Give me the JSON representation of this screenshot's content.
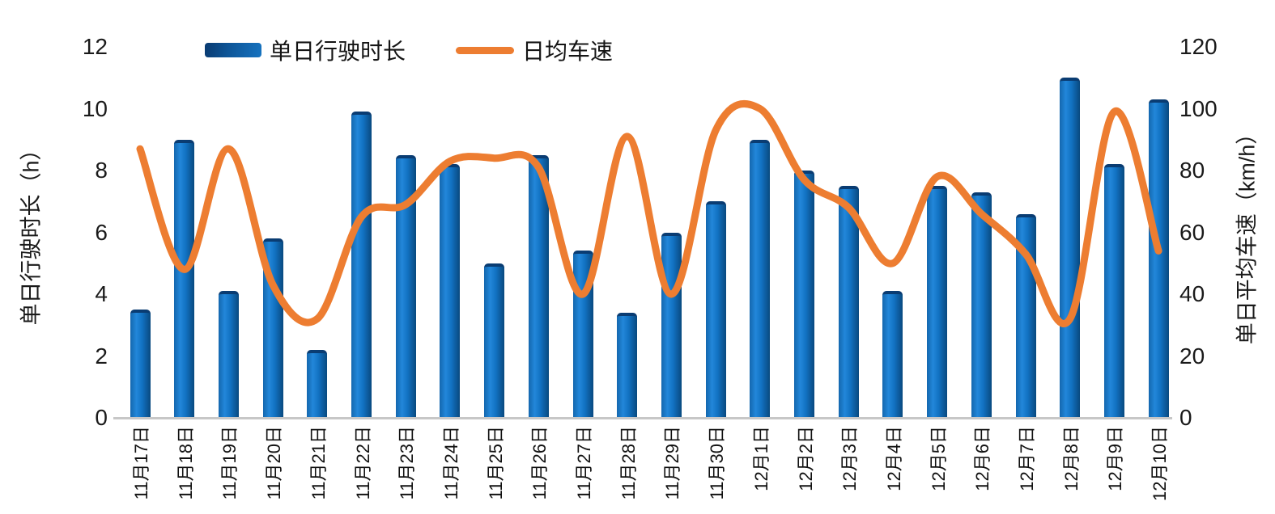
{
  "chart_data": {
    "type": "bar-line-combo",
    "categories": [
      "11月17日",
      "11月18日",
      "11月19日",
      "11月20日",
      "11月21日",
      "11月22日",
      "11月23日",
      "11月24日",
      "11月25日",
      "11月26日",
      "11月27日",
      "11月28日",
      "11月29日",
      "11月30日",
      "12月1日",
      "12月2日",
      "12月3日",
      "12月4日",
      "12月5日",
      "12月6日",
      "12月7日",
      "12月8日",
      "12月9日",
      "12月10日"
    ],
    "series": [
      {
        "name": "单日行驶时长",
        "type": "bar",
        "axis": "left",
        "unit": "h",
        "color": "#1272C4",
        "values": [
          3.5,
          9.0,
          4.1,
          5.8,
          2.2,
          9.9,
          8.5,
          8.2,
          5.0,
          8.5,
          5.4,
          3.4,
          6.0,
          7.0,
          9.0,
          8.0,
          7.5,
          4.1,
          7.5,
          7.3,
          6.6,
          11.0,
          8.2,
          10.3
        ]
      },
      {
        "name": "日均车速",
        "type": "line",
        "axis": "right",
        "unit": "km/h",
        "color": "#ED7D31",
        "smooth": true,
        "values": [
          87,
          48,
          87,
          43,
          32,
          65,
          69,
          83,
          84,
          81,
          40,
          91,
          40,
          93,
          100,
          77,
          68,
          50,
          78,
          66,
          53,
          32,
          99,
          54
        ]
      }
    ],
    "left_axis": {
      "title": "单日行驶时长（h）",
      "min": 0,
      "max": 12,
      "ticks": [
        12,
        10,
        8,
        6,
        4,
        2,
        0
      ]
    },
    "right_axis": {
      "title": "单日平均车速（km/h）",
      "min": 0,
      "max": 120,
      "ticks": [
        120,
        100,
        80,
        60,
        40,
        20,
        0
      ]
    },
    "legend": {
      "position": "top",
      "items": [
        "单日行驶时长",
        "日均车速"
      ]
    },
    "grid": false,
    "x_tick_rotation": -90
  },
  "colors": {
    "bar_fill": "#1272C4",
    "bar_cap": "#0A3C72",
    "line": "#ED7D31",
    "axis_line": "#C7C7C7",
    "text": "#1A1A1A"
  }
}
